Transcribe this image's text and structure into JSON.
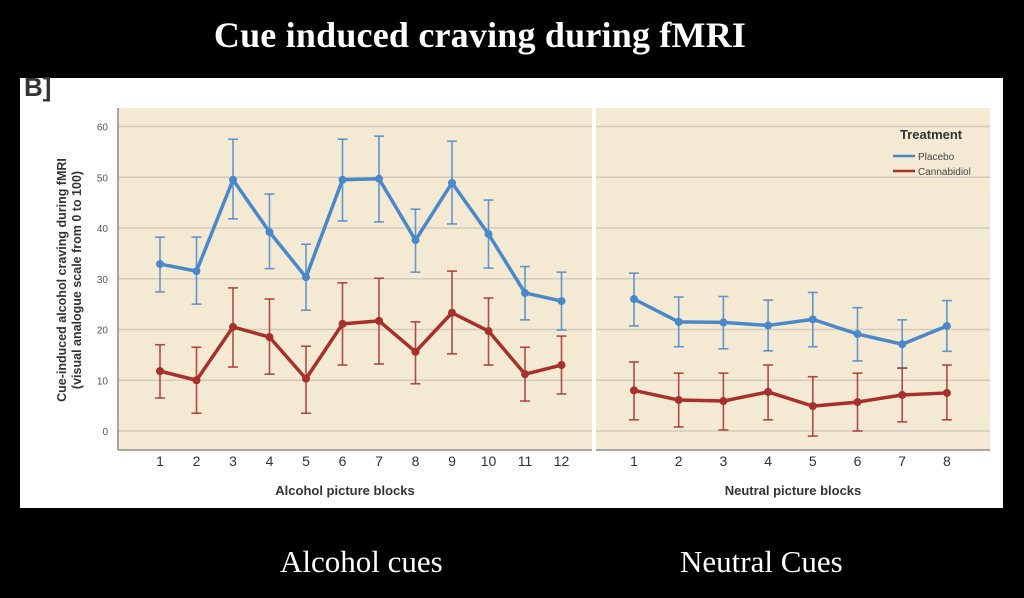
{
  "slide": {
    "title": "Cue induced craving during fMRI",
    "panel_letter": "B]",
    "captions": [
      "Alcohol cues",
      "Neutral Cues"
    ]
  },
  "colors": {
    "placebo": "#4a88c9",
    "cannabidiol": "#a7302b",
    "plot_background": "#f4ead3",
    "gridline": "#d2cbbd"
  },
  "chart_data": [
    {
      "type": "line",
      "title": "",
      "xlabel": "Alcohol picture blocks",
      "ylabel": "Cue-induced alcohol craving during fMRI\n(visual analogue scale from 0 to 100)",
      "ylim": [
        -3,
        64
      ],
      "yticks": [
        0,
        10,
        20,
        30,
        40,
        50,
        60
      ],
      "grid": true,
      "x": [
        1,
        2,
        3,
        4,
        5,
        6,
        7,
        8,
        9,
        10,
        11,
        12
      ],
      "series": [
        {
          "name": "Placebo",
          "values": [
            32.9,
            31.5,
            49.5,
            39.2,
            30.3,
            49.5,
            49.7,
            37.6,
            48.9,
            38.8,
            27.2,
            25.6
          ],
          "err_upper": [
            38.2,
            38.2,
            57.5,
            46.7,
            36.8,
            57.5,
            58.1,
            43.7,
            57.1,
            45.5,
            32.4,
            31.3
          ],
          "err_lower": [
            27.4,
            25.0,
            41.8,
            32.0,
            23.8,
            41.4,
            41.2,
            31.3,
            40.8,
            32.1,
            21.9,
            19.9
          ]
        },
        {
          "name": "Cannabidiol",
          "values": [
            11.8,
            10.0,
            20.5,
            18.5,
            10.3,
            21.1,
            21.7,
            15.6,
            23.3,
            19.7,
            11.2,
            13.0
          ],
          "err_upper": [
            17.0,
            16.5,
            28.2,
            26.0,
            16.7,
            29.2,
            30.1,
            21.5,
            31.5,
            26.2,
            16.5,
            18.7
          ],
          "err_lower": [
            6.5,
            3.5,
            12.6,
            11.2,
            3.5,
            13.0,
            13.2,
            9.3,
            15.2,
            13.0,
            5.9,
            7.3
          ]
        }
      ]
    },
    {
      "type": "line",
      "title": "",
      "xlabel": "Neutral picture blocks",
      "ylabel": "",
      "ylim": [
        -3,
        64
      ],
      "grid": true,
      "x": [
        1,
        2,
        3,
        4,
        5,
        6,
        7,
        8
      ],
      "legend": {
        "title": "Treatment",
        "entries": [
          "Placebo",
          "Cannabidiol"
        ],
        "placement": "top-right"
      },
      "series": [
        {
          "name": "Placebo",
          "values": [
            26.0,
            21.5,
            21.4,
            20.8,
            22.0,
            19.1,
            17.1,
            20.7
          ],
          "err_upper": [
            31.1,
            26.4,
            26.5,
            25.8,
            27.3,
            24.3,
            21.9,
            25.7
          ],
          "err_lower": [
            20.7,
            16.6,
            16.2,
            15.8,
            16.6,
            13.8,
            12.4,
            15.7
          ]
        },
        {
          "name": "Cannabidiol",
          "values": [
            8.0,
            6.1,
            5.9,
            7.7,
            4.9,
            5.7,
            7.1,
            7.5
          ],
          "err_upper": [
            13.6,
            11.4,
            11.4,
            13.0,
            10.7,
            11.4,
            12.4,
            13.0
          ],
          "err_lower": [
            2.2,
            0.8,
            0.2,
            2.2,
            -1.0,
            0.0,
            1.8,
            2.2
          ]
        }
      ]
    }
  ]
}
